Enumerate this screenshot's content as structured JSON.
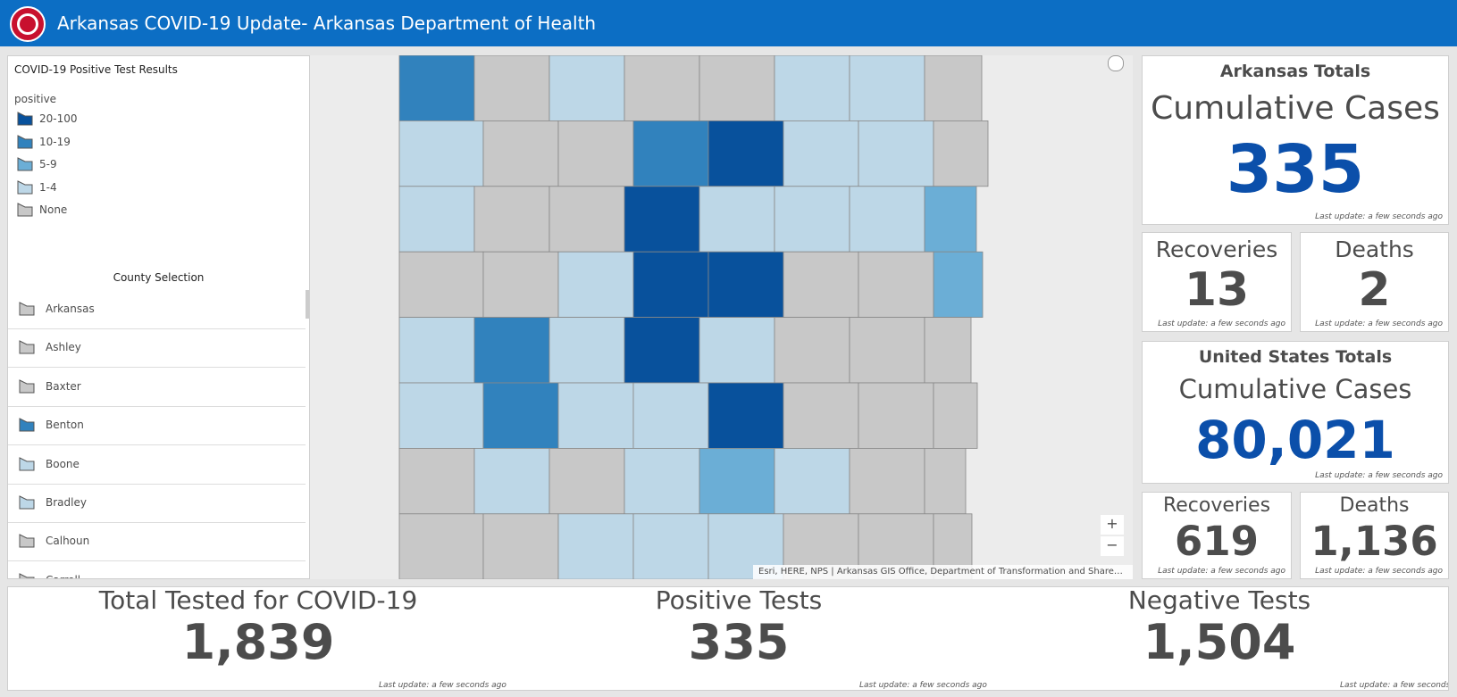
{
  "header": {
    "title": "Arkansas COVID-19 Update- Arkansas Department of Health"
  },
  "legend": {
    "title": "COVID-19 Positive Test Results",
    "field": "positive",
    "items": [
      {
        "label": "20-100",
        "color": "#08519c"
      },
      {
        "label": "10-19",
        "color": "#3182bd"
      },
      {
        "label": "5-9",
        "color": "#6baed6"
      },
      {
        "label": "1-4",
        "color": "#bdd7e7"
      },
      {
        "label": "None",
        "color": "#c8c8c8"
      }
    ]
  },
  "county_selection": {
    "title": "County Selection",
    "counties": [
      {
        "name": "Arkansas",
        "color": "#c8c8c8"
      },
      {
        "name": "Ashley",
        "color": "#c8c8c8"
      },
      {
        "name": "Baxter",
        "color": "#c8c8c8"
      },
      {
        "name": "Benton",
        "color": "#3182bd"
      },
      {
        "name": "Boone",
        "color": "#bdd7e7"
      },
      {
        "name": "Bradley",
        "color": "#bdd7e7"
      },
      {
        "name": "Calhoun",
        "color": "#c8c8c8"
      },
      {
        "name": "Carroll",
        "color": "#c8c8c8"
      }
    ]
  },
  "map": {
    "attribution": "Esri, HERE, NPS | Arkansas GIS Office, Department of Transformation and Share…",
    "zoom_in": "+",
    "zoom_out": "−"
  },
  "arkansas_totals": {
    "title": "Arkansas Totals",
    "label": "Cumulative Cases",
    "value": "335",
    "note": "Last update: a few seconds ago",
    "recoveries": {
      "label": "Recoveries",
      "value": "13",
      "note": "Last update: a few seconds ago"
    },
    "deaths": {
      "label": "Deaths",
      "value": "2",
      "note": "Last update: a few seconds ago"
    }
  },
  "us_totals": {
    "title": "United States Totals",
    "label": "Cumulative Cases",
    "value": "80,021",
    "note": "Last update: a few seconds ago",
    "recoveries": {
      "label": "Recoveries",
      "value": "619",
      "note": "Last update: a few seconds ago"
    },
    "deaths": {
      "label": "Deaths",
      "value": "1,136",
      "note": "Last update: a few seconds ago"
    }
  },
  "tests": [
    {
      "label": "Total Tested for COVID-19",
      "value": "1,839",
      "note": "Last update: a few seconds ago"
    },
    {
      "label": "Positive Tests",
      "value": "335",
      "note": "Last update: a few seconds ago"
    },
    {
      "label": "Negative Tests",
      "value": "1,504",
      "note": "Last update: a few seconds ago"
    }
  ]
}
